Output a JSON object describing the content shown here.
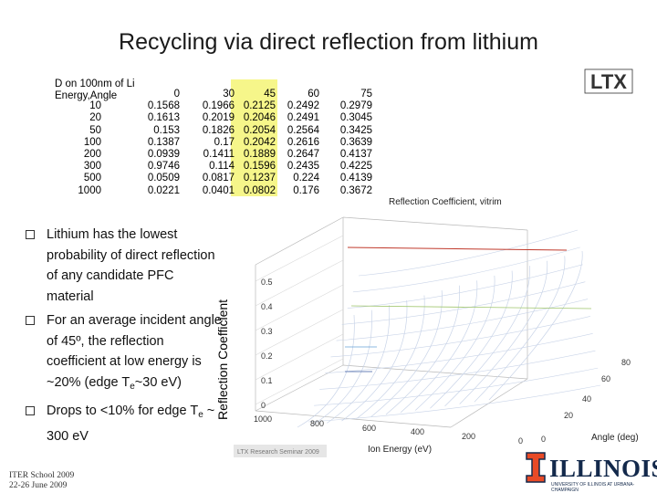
{
  "slide": {
    "title": "Recycling via direct reflection from lithium",
    "logo_ltx": "LTX"
  },
  "table": {
    "header_line1": "D on 100nm of Li",
    "header_line2": "Energy,Angle",
    "angles": [
      "0",
      "30",
      "45",
      "60",
      "75"
    ],
    "highlight_color": "#f6f68a",
    "rows": [
      {
        "energy": "10",
        "values": [
          "0.1568",
          "0.1966",
          "0.2125",
          "0.2492",
          "0.2979"
        ]
      },
      {
        "energy": "20",
        "values": [
          "0.1613",
          "0.2019",
          "0.2046",
          "0.2491",
          "0.3045"
        ]
      },
      {
        "energy": "50",
        "values": [
          "0.153",
          "0.1826",
          "0.2054",
          "0.2564",
          "0.3425"
        ]
      },
      {
        "energy": "100",
        "values": [
          "0.1387",
          "0.17",
          "0.2042",
          "0.2616",
          "0.3639"
        ]
      },
      {
        "energy": "200",
        "values": [
          "0.0939",
          "0.1411",
          "0.1889",
          "0.2647",
          "0.4137"
        ]
      },
      {
        "energy": "300",
        "values": [
          "0.9746",
          "0.114",
          "0.1596",
          "0.2435",
          "0.4225"
        ]
      },
      {
        "energy": "500",
        "values": [
          "0.0509",
          "0.0817",
          "0.1237",
          "0.224",
          "0.4139"
        ]
      },
      {
        "energy": "1000",
        "values": [
          "0.0221",
          "0.0401",
          "0.0802",
          "0.176",
          "0.3672"
        ]
      }
    ]
  },
  "bullets": [
    {
      "text": "Lithium has the lowest probability of direct reflection of any candidate PFC material"
    },
    {
      "text": "For an average incident angle of 45º, the reflection coefficient at low energy is ~20% (edge T",
      "sub": "e",
      "tail": "~30 eV)"
    },
    {
      "text": "Drops to <10% for edge T",
      "sub": "e",
      "tail": " ~ 300 eV"
    }
  ],
  "chart_data": {
    "type": "surface3d",
    "title": "Reflection Coefficient, vitrim",
    "zlabel": "Reflection Coefficient",
    "xlabel": "Ion Energy (eV)",
    "ylabel": "Angle (deg)",
    "z_ticks": [
      "0",
      "0.1",
      "0.2",
      "0.3",
      "0.4",
      "0.5"
    ],
    "energy_ticks": [
      "1000",
      "800",
      "600",
      "400",
      "200",
      "0"
    ],
    "angle_ticks": [
      "0",
      "20",
      "40",
      "60",
      "80"
    ],
    "caption": "LTX Research Seminar 2009",
    "line_color": "#c9d4e8"
  },
  "footer": {
    "line1": "ITER School 2009",
    "line2": "22-26 June 2009"
  },
  "illinois": {
    "wordmark": "ILLINOIS",
    "subtitle": "UNIVERSITY OF ILLINOIS AT URBANA-CHAMPAIGN",
    "color": "#13294b",
    "accent": "#e84a27"
  }
}
